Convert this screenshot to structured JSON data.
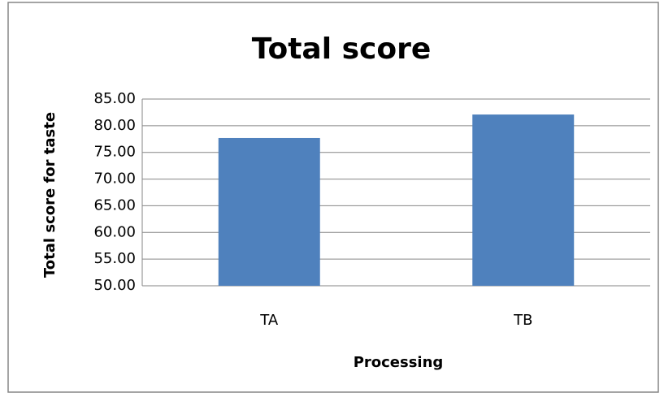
{
  "chart_data": {
    "type": "bar",
    "title": "Total score",
    "x_label": "Processing",
    "y_label": "Total score for taste",
    "categories": [
      "TA",
      "TB"
    ],
    "values": [
      77.7,
      82.1
    ],
    "color": "#4f81bd",
    "ylim": [
      50,
      85
    ],
    "yticks": [
      {
        "value": 50,
        "label": "50.00"
      },
      {
        "value": 55,
        "label": "55.00"
      },
      {
        "value": 60,
        "label": "60.00"
      },
      {
        "value": 65,
        "label": "65.00"
      },
      {
        "value": 70,
        "label": "70.00"
      },
      {
        "value": 75,
        "label": "75.00"
      },
      {
        "value": 80,
        "label": "80.00"
      },
      {
        "value": 85,
        "label": "85.00"
      }
    ],
    "grid": true
  }
}
